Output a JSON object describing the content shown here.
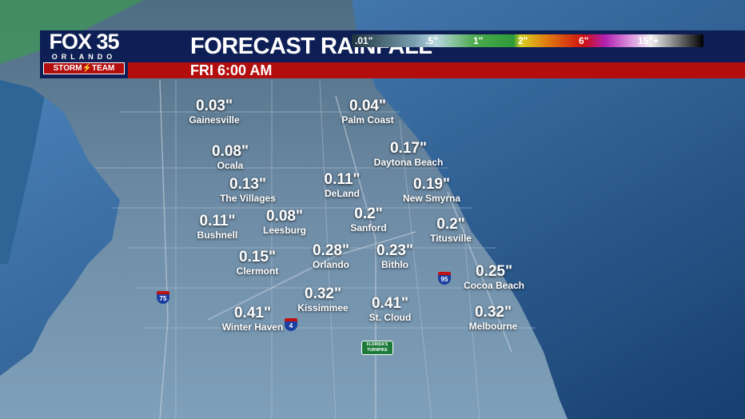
{
  "header": {
    "title": "FORECAST RAINFALL",
    "time": "FRI 6:00 AM"
  },
  "logo": {
    "brand": "FOX 35",
    "city": "ORLANDO",
    "team": "STORM⚡TEAM"
  },
  "legend": {
    "labels": [
      ".01\"",
      ".5\"",
      "1\"",
      "2\"",
      "6\"",
      "15\"+"
    ]
  },
  "highways": {
    "i95": "95",
    "i75": "75",
    "i4": "4",
    "turnpike": "FLORIDA'S TURNPIKE"
  },
  "cities": [
    {
      "name": "Gainesville",
      "value": "0.03\""
    },
    {
      "name": "Palm Coast",
      "value": "0.04\""
    },
    {
      "name": "Ocala",
      "value": "0.08\""
    },
    {
      "name": "Daytona Beach",
      "value": "0.17\""
    },
    {
      "name": "The Villages",
      "value": "0.13\""
    },
    {
      "name": "DeLand",
      "value": "0.11\""
    },
    {
      "name": "New Smyrna",
      "value": "0.19\""
    },
    {
      "name": "Bushnell",
      "value": "0.11\""
    },
    {
      "name": "Leesburg",
      "value": "0.08\""
    },
    {
      "name": "Sanford",
      "value": "0.2\""
    },
    {
      "name": "Titusville",
      "value": "0.2\""
    },
    {
      "name": "Clermont",
      "value": "0.15\""
    },
    {
      "name": "Orlando",
      "value": "0.28\""
    },
    {
      "name": "Bithlo",
      "value": "0.23\""
    },
    {
      "name": "Cocoa Beach",
      "value": "0.25\""
    },
    {
      "name": "Kissimmee",
      "value": "0.32\""
    },
    {
      "name": "St. Cloud",
      "value": "0.41\""
    },
    {
      "name": "Melbourne",
      "value": "0.32\""
    },
    {
      "name": "Winter Haven",
      "value": "0.41\""
    }
  ],
  "colors": {
    "land": "#6e8ca6",
    "ocean": "#2b5f93",
    "banner_blue": "#0e1f55",
    "banner_red": "#b30d0d"
  }
}
